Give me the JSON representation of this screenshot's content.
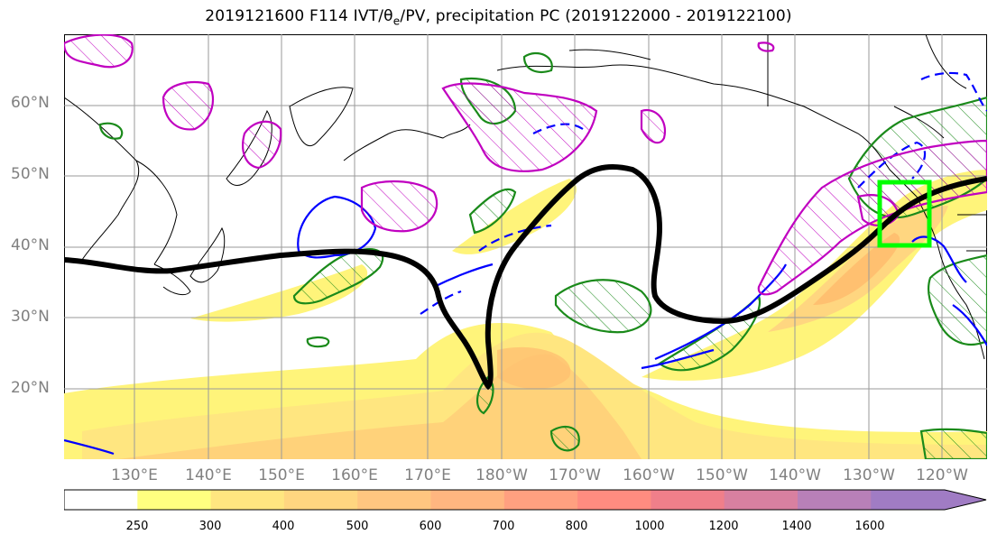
{
  "title": {
    "prefix": "2019121600 F114 IVT/θ",
    "sub": "e",
    "suffix": "/PV, precipitation PC (2019122000 - 2019122100)"
  },
  "latitude_labels": [
    "60°N",
    "50°N",
    "40°N",
    "30°N",
    "20°N"
  ],
  "longitude_labels": [
    "130°E",
    "140°E",
    "150°E",
    "160°E",
    "170°E",
    "180°W",
    "170°W",
    "160°W",
    "150°W",
    "140°W",
    "130°W",
    "120°W"
  ],
  "colorbar": {
    "ticks": [
      "250",
      "300",
      "400",
      "500",
      "600",
      "700",
      "800",
      "1000",
      "1200",
      "1400",
      "1600"
    ],
    "colors": [
      "#ffffff",
      "#ffff80",
      "#ffe680",
      "#ffd680",
      "#ffc680",
      "#ffb680",
      "#ffa080",
      "#ff8c80",
      "#f07f8a",
      "#d880a0",
      "#b880b8",
      "#a07cc4"
    ],
    "extend": "max"
  },
  "legend_colors": {
    "ivt_low": "#ffff80",
    "ivt_high": "#ffb680",
    "pv_contour": "#000000",
    "precip_positive": "#1a8a1a",
    "precip_negative": "#0000ff",
    "theta_e": "#c000c0",
    "target_box": "#00ff00"
  }
}
